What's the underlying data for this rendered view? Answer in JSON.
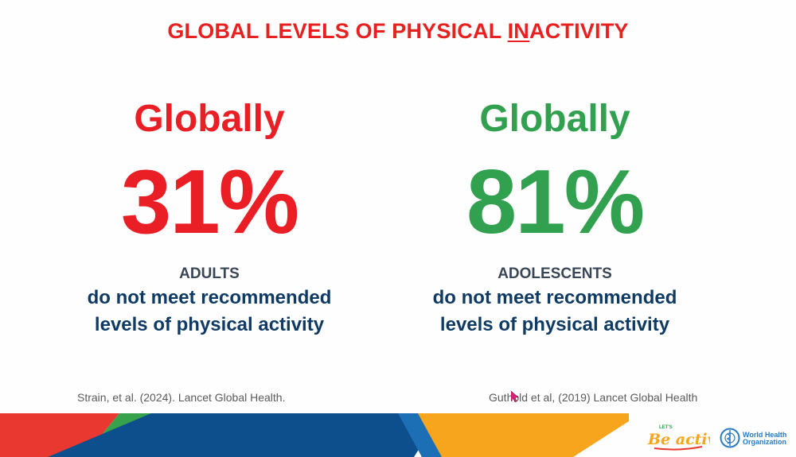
{
  "slide": {
    "title_before": "GLOBAL LEVELS OF PHYSICAL ",
    "title_underlined": "IN",
    "title_after": "ACTIVITY"
  },
  "left_stat": {
    "heading": "Globally",
    "value": "31%",
    "group": "ADULTS",
    "description_line1": "do not meet recommended",
    "description_line2": "levels of physical activity",
    "citation": "Strain, et al. (2024). Lancet Global Health."
  },
  "right_stat": {
    "heading": "Globally",
    "value": "81%",
    "group": "ADOLESCENTS",
    "description_line1": "do not meet recommended",
    "description_line2": "levels of physical activity",
    "citation": "Guthold et al, (2019) Lancet Global Health"
  },
  "logos": {
    "lets": "LET'S",
    "be_active": "Be active",
    "who_line1": "World Health",
    "who_line2": "Organization"
  },
  "colors": {
    "title": "#e8201f",
    "left_accent": "#ea1e25",
    "right_accent": "#31a150",
    "body_text": "#0e3a63",
    "footer_red": "#e8382f",
    "footer_green": "#36a24c",
    "footer_blue": "#0d4f8c",
    "footer_yellow": "#f6a51d"
  },
  "icons": {
    "be_active_logo": "be-active-logo",
    "who_logo": "who-emblem-icon",
    "cursor": "mouse-cursor-icon"
  }
}
